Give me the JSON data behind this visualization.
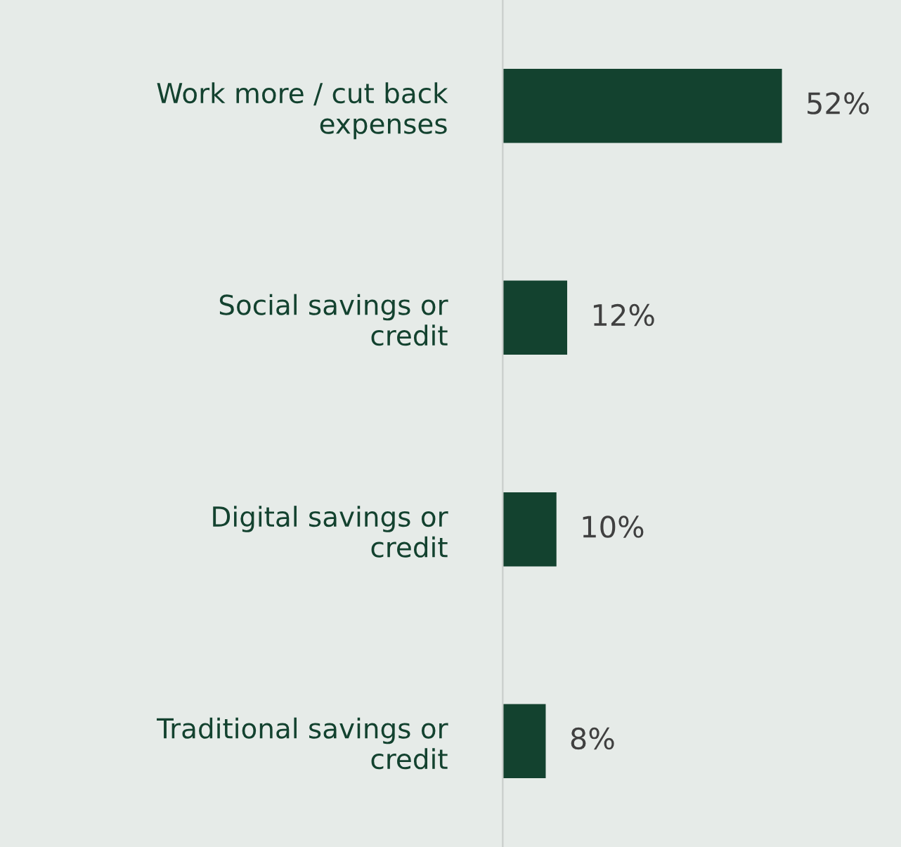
{
  "chart_data": {
    "type": "bar",
    "orientation": "horizontal",
    "categories": [
      "Work more / cut back expenses",
      "Social savings or credit",
      "Digital savings or credit",
      "Traditional savings or credit"
    ],
    "values": [
      52,
      12,
      10,
      8
    ],
    "value_labels": [
      "52%",
      "12%",
      "10%",
      "8%"
    ],
    "color": "#13422f",
    "tick_labels": "y",
    "grid": false,
    "legend": false
  }
}
